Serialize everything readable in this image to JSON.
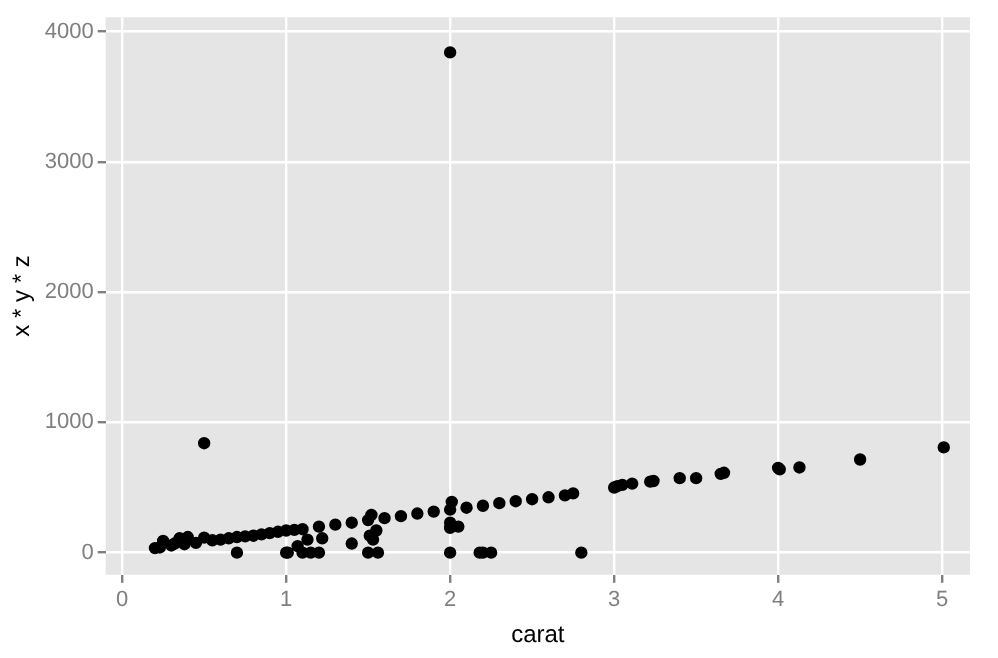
{
  "chart_data": {
    "type": "scatter",
    "xlabel": "carat",
    "ylabel": "x * y * z",
    "xlim": [
      -0.1,
      5.17
    ],
    "ylim": [
      -170,
      4110
    ],
    "xticks": [
      0,
      1,
      2,
      3,
      4,
      5
    ],
    "yticks": [
      0,
      1000,
      2000,
      3000,
      4000
    ],
    "grid": true,
    "legend": false,
    "marker": "circle",
    "series": [
      {
        "color": "#000000",
        "x": [
          0.2,
          0.23,
          0.25,
          0.3,
          0.32,
          0.35,
          0.38,
          0.4,
          0.45,
          0.5,
          0.55,
          0.6,
          0.65,
          0.7,
          0.75,
          0.8,
          0.85,
          0.9,
          0.95,
          1.0,
          1.05,
          1.1,
          1.2,
          1.3,
          1.4,
          1.5,
          1.6,
          1.7,
          1.8,
          1.9,
          2.0,
          2.1,
          2.2,
          2.3,
          2.4,
          2.5,
          2.6,
          2.7,
          2.75,
          0.5,
          2.0,
          0.7,
          1.0,
          1.01,
          1.07,
          1.1,
          1.13,
          1.15,
          1.2,
          1.22,
          1.4,
          1.5,
          1.51,
          1.53,
          1.55,
          1.56,
          2.0,
          2.0,
          2.0,
          2.05,
          2.18,
          2.2,
          2.25,
          2.8,
          2.01,
          1.52,
          3.0,
          3.02,
          3.05,
          3.11,
          3.22,
          3.24,
          3.4,
          3.5,
          3.65,
          3.67,
          4.0,
          4.01,
          4.13,
          4.5,
          5.01
        ],
        "values": [
          35,
          40,
          90,
          55,
          70,
          110,
          65,
          120,
          75,
          115,
          95,
          100,
          110,
          120,
          125,
          130,
          140,
          150,
          160,
          170,
          175,
          180,
          200,
          215,
          230,
          250,
          265,
          280,
          300,
          315,
          330,
          345,
          360,
          380,
          395,
          410,
          425,
          440,
          455,
          840,
          3840,
          0,
          0,
          0,
          50,
          0,
          100,
          0,
          0,
          110,
          70,
          0,
          130,
          100,
          170,
          0,
          0,
          230,
          190,
          200,
          0,
          0,
          0,
          0,
          390,
          290,
          500,
          510,
          520,
          530,
          545,
          550,
          572,
          572,
          605,
          613,
          650,
          640,
          654,
          715,
          808
        ]
      }
    ]
  }
}
